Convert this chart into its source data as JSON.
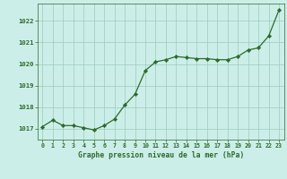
{
  "x": [
    0,
    1,
    2,
    3,
    4,
    5,
    6,
    7,
    8,
    9,
    10,
    11,
    12,
    13,
    14,
    15,
    16,
    17,
    18,
    19,
    20,
    21,
    22,
    23
  ],
  "y": [
    1017.1,
    1017.4,
    1017.15,
    1017.15,
    1017.05,
    1016.95,
    1017.15,
    1017.45,
    1018.1,
    1018.6,
    1019.7,
    1020.1,
    1020.2,
    1020.35,
    1020.3,
    1020.25,
    1020.25,
    1020.2,
    1020.2,
    1020.35,
    1020.65,
    1020.75,
    1021.3,
    1022.5
  ],
  "line_color": "#2d6a2d",
  "marker": "D",
  "markersize": 2.2,
  "linewidth": 0.9,
  "bg_color": "#cceee8",
  "grid_color": "#99ccbb",
  "xlabel": "Graphe pression niveau de la mer (hPa)",
  "xlabel_color": "#2d6a2d",
  "tick_color": "#2d6a2d",
  "ylim": [
    1016.5,
    1022.8
  ],
  "yticks": [
    1017,
    1018,
    1019,
    1020,
    1021,
    1022
  ],
  "figsize": [
    3.2,
    2.0
  ],
  "dpi": 100
}
